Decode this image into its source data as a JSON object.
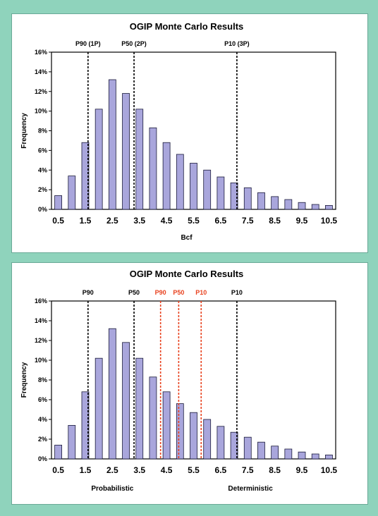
{
  "chart_data": [
    {
      "type": "bar",
      "title": "OGIP Monte Carlo Results",
      "xlabel": "Bcf",
      "ylabel": "Frequency",
      "ylim": [
        0,
        0.16
      ],
      "yticks": [
        "0%",
        "2%",
        "4%",
        "6%",
        "8%",
        "10%",
        "12%",
        "14%",
        "16%"
      ],
      "xticks": [
        "0.5",
        "1.5",
        "2.5",
        "3.5",
        "4.5",
        "5.5",
        "6.5",
        "7.5",
        "8.5",
        "9.5",
        "10.5"
      ],
      "x": [
        0.5,
        1.0,
        1.5,
        2.0,
        2.5,
        3.0,
        3.5,
        4.0,
        4.5,
        5.0,
        5.5,
        6.0,
        6.5,
        7.0,
        7.5,
        8.0,
        8.5,
        9.0,
        9.5,
        10.0,
        10.5
      ],
      "values": [
        0.014,
        0.034,
        0.068,
        0.102,
        0.132,
        0.118,
        0.102,
        0.083,
        0.068,
        0.056,
        0.047,
        0.04,
        0.033,
        0.027,
        0.022,
        0.017,
        0.013,
        0.01,
        0.007,
        0.005,
        0.004
      ],
      "grid": false,
      "markers": [
        {
          "label": "P90 (1P)",
          "x": 1.6,
          "color": "#000000"
        },
        {
          "label": "P50 (2P)",
          "x": 3.3,
          "color": "#000000"
        },
        {
          "label": "P10 (3P)",
          "x": 7.1,
          "color": "#000000"
        }
      ],
      "bottom_labels": []
    },
    {
      "type": "bar",
      "title": "OGIP Monte Carlo Results",
      "xlabel": "",
      "ylabel": "Frequency",
      "ylim": [
        0,
        0.16
      ],
      "yticks": [
        "0%",
        "2%",
        "4%",
        "6%",
        "8%",
        "10%",
        "12%",
        "14%",
        "16%"
      ],
      "xticks": [
        "0.5",
        "1.5",
        "2.5",
        "3.5",
        "4.5",
        "5.5",
        "6.5",
        "7.5",
        "8.5",
        "9.5",
        "10.5"
      ],
      "x": [
        0.5,
        1.0,
        1.5,
        2.0,
        2.5,
        3.0,
        3.5,
        4.0,
        4.5,
        5.0,
        5.5,
        6.0,
        6.5,
        7.0,
        7.5,
        8.0,
        8.5,
        9.0,
        9.5,
        10.0,
        10.5
      ],
      "values": [
        0.014,
        0.034,
        0.068,
        0.102,
        0.132,
        0.118,
        0.102,
        0.083,
        0.068,
        0.056,
        0.047,
        0.04,
        0.033,
        0.027,
        0.022,
        0.017,
        0.013,
        0.01,
        0.007,
        0.005,
        0.004
      ],
      "grid": false,
      "markers": [
        {
          "label": "P90",
          "x": 1.6,
          "color": "#000000"
        },
        {
          "label": "P50",
          "x": 3.3,
          "color": "#000000"
        },
        {
          "label": "P90",
          "x": 4.28,
          "color": "#e8421f"
        },
        {
          "label": "P50",
          "x": 4.95,
          "color": "#e8421f"
        },
        {
          "label": "P10",
          "x": 5.78,
          "color": "#e8421f"
        },
        {
          "label": "P10",
          "x": 7.1,
          "color": "#000000"
        }
      ],
      "bottom_labels": [
        {
          "text": "Probabilistic",
          "color": "#000000"
        },
        {
          "text": "Deterministic",
          "color": "#e8421f"
        }
      ]
    }
  ]
}
